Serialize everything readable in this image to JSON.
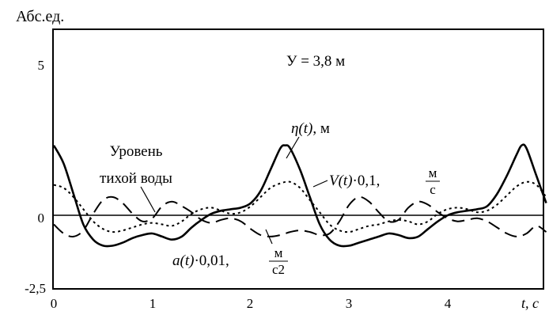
{
  "chart_data": {
    "type": "line",
    "ylabel": "Абс.ед.",
    "xlabel": "t, с",
    "xlim": [
      0,
      5
    ],
    "ylim": [
      -2.5,
      6.5
    ],
    "x_ticks": [
      "0",
      "1",
      "2",
      "3",
      "4"
    ],
    "y_ticks": [
      {
        "value": 5,
        "label": "5"
      },
      {
        "value": 0,
        "label": "0"
      },
      {
        "value": -2.5,
        "label": "-2,5"
      }
    ],
    "grid": false,
    "legend": "none",
    "annotations": {
      "depth": "У = 3,8 м",
      "still_water_line1": "Уровень",
      "still_water_line2": "тихой воды",
      "eta_fn": "η(t)",
      "eta_unit": ", м",
      "v_fn": "V(t)",
      "v_mult": "·0,1,",
      "v_unit_num": "м",
      "v_unit_den": "с",
      "a_fn": "a(t)",
      "a_mult": "·0,01,",
      "a_unit_num": "м",
      "a_unit_den": "с2"
    },
    "series": [
      {
        "style": "solid",
        "x": [
          0,
          0.1,
          0.2,
          0.3,
          0.4,
          0.5,
          0.6,
          0.7,
          0.8,
          0.9,
          1.0,
          1.1,
          1.2,
          1.3,
          1.4,
          1.5,
          1.6,
          1.7,
          1.8,
          1.9,
          2.0,
          2.1,
          2.2,
          2.3,
          2.35,
          2.4,
          2.5,
          2.6,
          2.7,
          2.8,
          2.9,
          3.0,
          3.1,
          3.2,
          3.3,
          3.4,
          3.5,
          3.6,
          3.7,
          3.8,
          3.9,
          4.0,
          4.1,
          4.2,
          4.3,
          4.4,
          4.5,
          4.6,
          4.7,
          4.75,
          4.8,
          4.9,
          5.0
        ],
        "y": [
          2.3,
          1.7,
          0.7,
          -0.3,
          -0.8,
          -1.0,
          -1.0,
          -0.9,
          -0.75,
          -0.65,
          -0.6,
          -0.7,
          -0.8,
          -0.7,
          -0.4,
          -0.15,
          0.05,
          0.15,
          0.2,
          0.25,
          0.4,
          0.8,
          1.5,
          2.2,
          2.3,
          2.2,
          1.5,
          0.6,
          -0.3,
          -0.8,
          -1.0,
          -1.0,
          -0.9,
          -0.8,
          -0.7,
          -0.6,
          -0.65,
          -0.75,
          -0.7,
          -0.45,
          -0.2,
          0.0,
          0.1,
          0.15,
          0.2,
          0.3,
          0.7,
          1.3,
          2.0,
          2.3,
          2.2,
          1.3,
          0.4
        ]
      },
      {
        "style": "dotted",
        "x": [
          0,
          0.1,
          0.2,
          0.3,
          0.4,
          0.5,
          0.6,
          0.7,
          0.8,
          0.9,
          1.0,
          1.1,
          1.2,
          1.3,
          1.4,
          1.5,
          1.6,
          1.7,
          1.8,
          1.9,
          2.0,
          2.1,
          2.2,
          2.3,
          2.4,
          2.5,
          2.6,
          2.7,
          2.8,
          2.9,
          3.0,
          3.1,
          3.2,
          3.3,
          3.4,
          3.5,
          3.6,
          3.7,
          3.8,
          3.9,
          4.0,
          4.1,
          4.2,
          4.3,
          4.4,
          4.5,
          4.6,
          4.7,
          4.8,
          4.9,
          5.0
        ],
        "y": [
          1.0,
          0.9,
          0.6,
          0.2,
          -0.2,
          -0.45,
          -0.55,
          -0.5,
          -0.4,
          -0.3,
          -0.25,
          -0.3,
          -0.35,
          -0.2,
          0.05,
          0.2,
          0.25,
          0.15,
          0.05,
          0.1,
          0.3,
          0.6,
          0.9,
          1.05,
          1.1,
          0.9,
          0.5,
          0.1,
          -0.3,
          -0.5,
          -0.55,
          -0.45,
          -0.35,
          -0.3,
          -0.2,
          -0.15,
          -0.2,
          -0.3,
          -0.2,
          0.05,
          0.2,
          0.25,
          0.2,
          0.1,
          0.15,
          0.35,
          0.65,
          0.95,
          1.1,
          1.0,
          0.6
        ]
      },
      {
        "style": "dashed",
        "x": [
          0,
          0.1,
          0.2,
          0.3,
          0.4,
          0.5,
          0.6,
          0.7,
          0.8,
          0.9,
          1.0,
          1.1,
          1.2,
          1.3,
          1.4,
          1.5,
          1.6,
          1.7,
          1.8,
          1.9,
          2.0,
          2.1,
          2.2,
          2.3,
          2.4,
          2.5,
          2.6,
          2.7,
          2.8,
          2.9,
          3.0,
          3.1,
          3.2,
          3.3,
          3.4,
          3.5,
          3.6,
          3.7,
          3.8,
          3.9,
          4.0,
          4.1,
          4.2,
          4.3,
          4.4,
          4.5,
          4.6,
          4.7,
          4.8,
          4.9,
          5.0
        ],
        "y": [
          -0.3,
          -0.6,
          -0.7,
          -0.5,
          0.05,
          0.5,
          0.6,
          0.4,
          0.05,
          -0.2,
          -0.1,
          0.3,
          0.45,
          0.3,
          0.1,
          -0.15,
          -0.25,
          -0.15,
          -0.1,
          -0.2,
          -0.45,
          -0.65,
          -0.7,
          -0.65,
          -0.55,
          -0.5,
          -0.55,
          -0.65,
          -0.6,
          -0.2,
          0.35,
          0.6,
          0.45,
          0.1,
          -0.2,
          -0.15,
          0.25,
          0.45,
          0.35,
          0.1,
          -0.1,
          -0.2,
          -0.15,
          -0.1,
          -0.2,
          -0.4,
          -0.6,
          -0.7,
          -0.6,
          -0.35,
          -0.55
        ]
      }
    ]
  }
}
